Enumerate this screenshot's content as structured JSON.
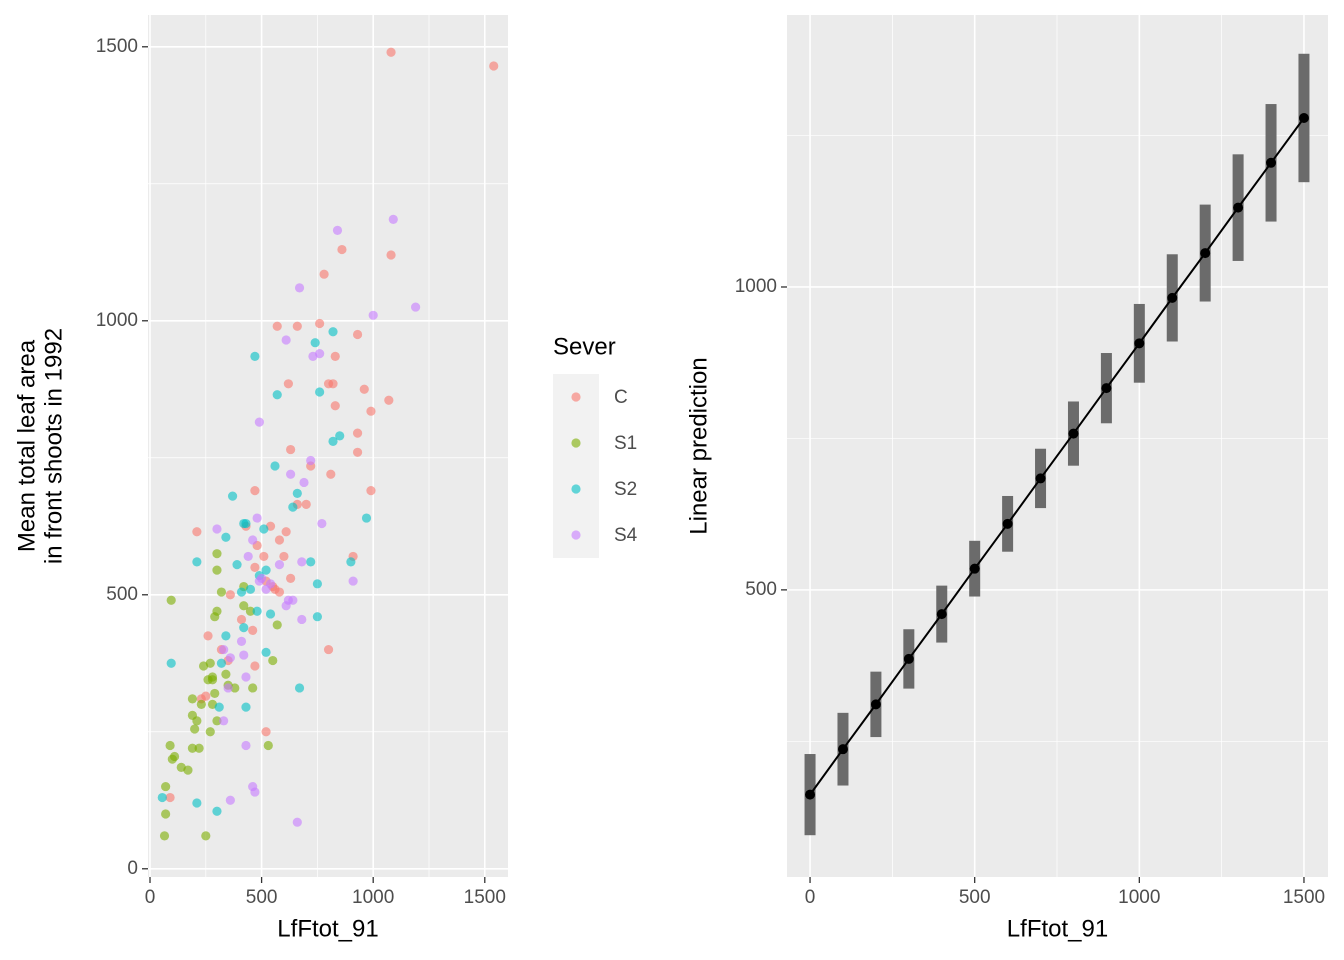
{
  "chart_data": [
    {
      "type": "scatter",
      "xlabel": "LfFtot_91",
      "ylabel": [
        "Mean total leaf area",
        "in front shoots in 1992"
      ],
      "legend_title": "Sever",
      "xlim": [
        -9,
        1604
      ],
      "ylim": [
        -15,
        1558
      ],
      "xticks": [
        0,
        500,
        1000,
        1500
      ],
      "yticks": [
        0,
        500,
        1000,
        1500
      ],
      "minor_xticks": [
        250,
        750,
        1250
      ],
      "minor_yticks": [
        250,
        750,
        1250
      ],
      "grid": true,
      "series": [
        {
          "name": "C",
          "color": "#F8766D",
          "x": [
            1080,
            1540,
            1080,
            860,
            780,
            570,
            660,
            760,
            830,
            930,
            620,
            800,
            820,
            960,
            830,
            990,
            1070,
            630,
            720,
            930,
            810,
            930,
            990,
            470,
            660,
            700,
            580,
            540,
            610,
            430,
            600,
            480,
            510,
            910,
            550,
            560,
            630,
            580,
            410,
            460,
            800,
            360,
            320,
            350,
            470,
            260,
            250,
            230,
            520,
            90,
            210,
            520,
            470
          ],
          "y": [
            1490,
            1465,
            1120,
            1130,
            1085,
            990,
            990,
            995,
            935,
            975,
            885,
            885,
            885,
            875,
            845,
            835,
            855,
            765,
            735,
            760,
            720,
            795,
            690,
            690,
            665,
            665,
            600,
            625,
            615,
            625,
            570,
            590,
            570,
            570,
            515,
            510,
            530,
            505,
            455,
            435,
            400,
            500,
            400,
            380,
            370,
            425,
            315,
            310,
            250,
            130,
            615,
            525,
            550
          ]
        },
        {
          "name": "S1",
          "color": "#7CAE00",
          "x": [
            95,
            90,
            100,
            110,
            70,
            140,
            170,
            70,
            65,
            250,
            190,
            190,
            210,
            200,
            220,
            190,
            240,
            270,
            260,
            280,
            280,
            290,
            300,
            290,
            300,
            300,
            320,
            340,
            380,
            420,
            420,
            450,
            460,
            530,
            570,
            550,
            270,
            230,
            300,
            350,
            280
          ],
          "y": [
            490,
            225,
            200,
            205,
            150,
            185,
            180,
            100,
            60,
            60,
            310,
            280,
            270,
            255,
            220,
            220,
            370,
            375,
            345,
            350,
            300,
            320,
            470,
            460,
            545,
            575,
            505,
            355,
            330,
            480,
            515,
            470,
            330,
            225,
            445,
            380,
            250,
            300,
            270,
            335,
            345
          ]
        },
        {
          "name": "S2",
          "color": "#00BFC4",
          "x": [
            55,
            95,
            210,
            210,
            300,
            320,
            340,
            340,
            370,
            390,
            420,
            430,
            420,
            430,
            470,
            490,
            480,
            510,
            520,
            520,
            540,
            560,
            570,
            640,
            660,
            670,
            740,
            750,
            750,
            760,
            820,
            820,
            850,
            970,
            900,
            720,
            310,
            410,
            450
          ],
          "y": [
            130,
            375,
            120,
            560,
            105,
            375,
            425,
            605,
            680,
            555,
            630,
            630,
            440,
            295,
            935,
            535,
            470,
            620,
            545,
            395,
            465,
            735,
            865,
            660,
            685,
            330,
            960,
            520,
            460,
            870,
            980,
            780,
            790,
            640,
            560,
            560,
            295,
            505,
            510
          ]
        },
        {
          "name": "S4",
          "color": "#C77CFF",
          "x": [
            1090,
            840,
            1190,
            670,
            1000,
            610,
            730,
            760,
            720,
            490,
            630,
            690,
            480,
            460,
            300,
            440,
            580,
            680,
            770,
            910,
            490,
            500,
            520,
            610,
            620,
            640,
            680,
            350,
            330,
            360,
            410,
            420,
            330,
            430,
            360,
            460,
            470,
            660,
            430,
            540
          ],
          "y": [
            1185,
            1165,
            1025,
            1060,
            1010,
            965,
            935,
            940,
            745,
            815,
            720,
            705,
            640,
            600,
            620,
            570,
            555,
            560,
            630,
            525,
            525,
            530,
            510,
            480,
            490,
            490,
            455,
            330,
            400,
            385,
            415,
            390,
            270,
            225,
            125,
            150,
            140,
            85,
            350,
            520
          ]
        }
      ]
    },
    {
      "type": "line",
      "xlabel": "LfFtot_91",
      "ylabel": "Linear prediction",
      "xlim": [
        -70,
        1573
      ],
      "ylim": [
        26,
        1449
      ],
      "xticks": [
        0,
        500,
        1000,
        1500
      ],
      "yticks": [
        500,
        1000
      ],
      "minor_xticks": [
        250,
        750,
        1250
      ],
      "minor_yticks": [
        250,
        750,
        1250
      ],
      "grid": true,
      "color": "#000000",
      "errorbar_color": "#6b6b6b",
      "x": [
        0,
        100,
        200,
        300,
        400,
        500,
        600,
        700,
        800,
        900,
        1000,
        1100,
        1200,
        1300,
        1400,
        1500
      ],
      "values": [
        162,
        237,
        311,
        386,
        460,
        535,
        609,
        684,
        758,
        833,
        907,
        982,
        1056,
        1131,
        1205,
        1279
      ],
      "lower": [
        95,
        177,
        257,
        337,
        413,
        489,
        563,
        635,
        705,
        775,
        842,
        910,
        976,
        1043,
        1108,
        1173
      ],
      "upper": [
        229,
        297,
        365,
        435,
        507,
        581,
        655,
        733,
        811,
        891,
        972,
        1054,
        1136,
        1219,
        1302,
        1385
      ]
    }
  ]
}
